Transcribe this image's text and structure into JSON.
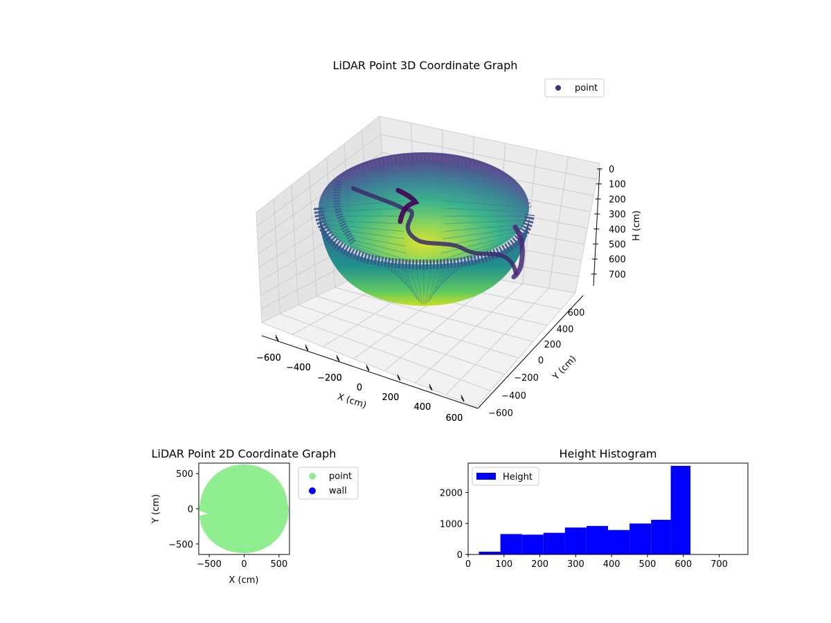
{
  "chart_data": [
    {
      "type": "scatter",
      "subtype": "3d",
      "title": "LiDAR Point 3D Coordinate Graph",
      "xlabel": "X (cm)",
      "ylabel": "Y (cm)",
      "zlabel": "H (cm)",
      "xticks": [
        "−600",
        "−400",
        "−200",
        "0",
        "200",
        "400",
        "600"
      ],
      "yticks": [
        "−600",
        "−400",
        "−200",
        "0",
        "200",
        "400",
        "600"
      ],
      "zticks": [
        "0",
        "100",
        "200",
        "300",
        "400",
        "500",
        "600",
        "700"
      ],
      "xlim": [
        -650,
        650
      ],
      "ylim": [
        -650,
        650
      ],
      "zlim": [
        780,
        0
      ],
      "z_axis_inverted": true,
      "grid": true,
      "legend": {
        "placement": "upper-right",
        "entries": [
          {
            "label": "point",
            "color": "#472d7b"
          }
        ]
      },
      "colormap": "viridis",
      "shape": "hemispherical bowl of points, radius about 650 cm, depth about 620 cm, with a wall trace of dark points along the inner surface"
    },
    {
      "type": "scatter",
      "title": "LiDAR Point 2D Coordinate Graph",
      "xlabel": "X (cm)",
      "ylabel": "Y (cm)",
      "xticks": [
        "−500",
        "0",
        "500"
      ],
      "yticks": [
        "500",
        "0",
        "−500"
      ],
      "xlim": [
        -650,
        650
      ],
      "ylim": [
        -650,
        650
      ],
      "legend": {
        "placement": "outside-right",
        "entries": [
          {
            "label": "point",
            "color": "#90ee90"
          },
          {
            "label": "wall",
            "color": "#0000ff"
          }
        ]
      },
      "shape": "filled disc of radius about 640 cm with a notch on the left side at Y about −100"
    },
    {
      "type": "bar",
      "subtype": "histogram",
      "title": "Height Histogram",
      "xticks": [
        "0",
        "100",
        "200",
        "300",
        "400",
        "500",
        "600",
        "700"
      ],
      "yticks": [
        "0",
        "1000",
        "2000"
      ],
      "xlim": [
        0,
        780
      ],
      "ylim": [
        0,
        2950
      ],
      "legend": {
        "placement": "upper-left",
        "entries": [
          {
            "label": "Height",
            "color": "#0000ff"
          }
        ]
      },
      "color": "#0000ff",
      "bins": [
        {
          "x0": 30,
          "x1": 90,
          "count": 90
        },
        {
          "x0": 90,
          "x1": 150,
          "count": 660
        },
        {
          "x0": 150,
          "x1": 210,
          "count": 640
        },
        {
          "x0": 210,
          "x1": 270,
          "count": 700
        },
        {
          "x0": 270,
          "x1": 330,
          "count": 870
        },
        {
          "x0": 330,
          "x1": 390,
          "count": 920
        },
        {
          "x0": 390,
          "x1": 450,
          "count": 790
        },
        {
          "x0": 450,
          "x1": 510,
          "count": 1000
        },
        {
          "x0": 510,
          "x1": 565,
          "count": 1120
        },
        {
          "x0": 565,
          "x1": 620,
          "count": 2860
        }
      ]
    }
  ]
}
